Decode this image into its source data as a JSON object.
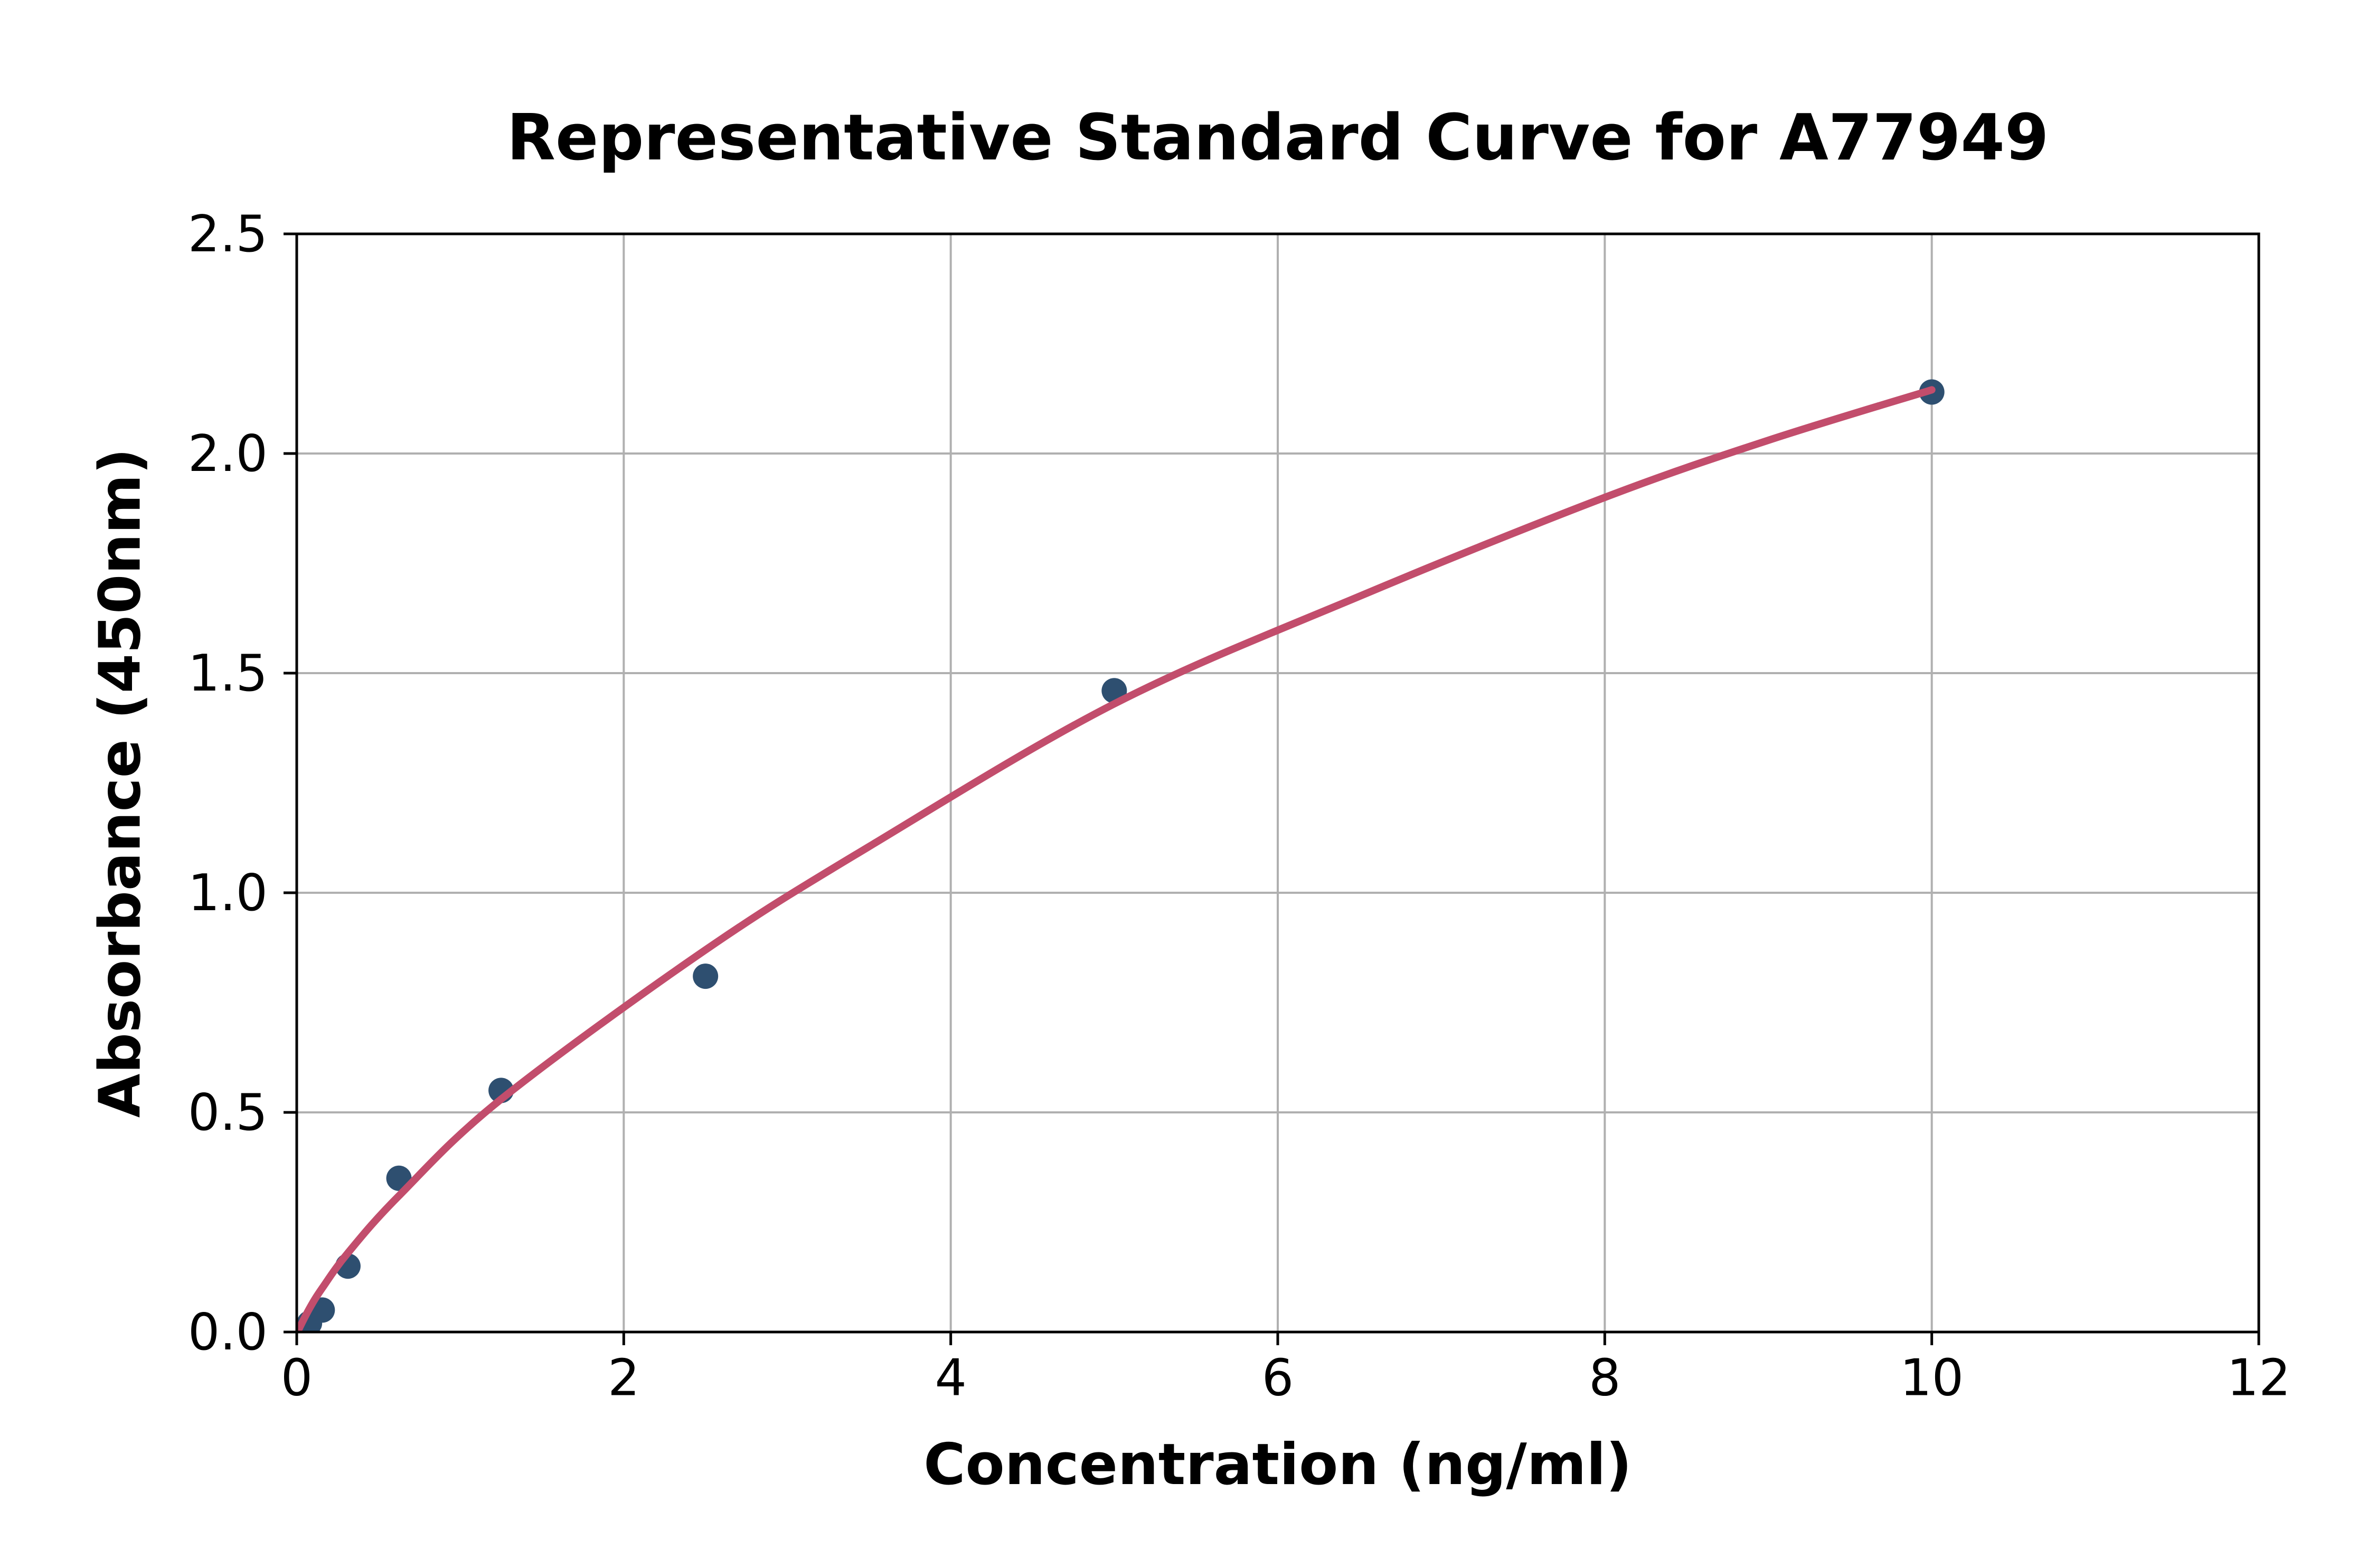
{
  "chart_data": {
    "type": "scatter",
    "title": "Representative Standard Curve for A77949",
    "xlabel": "Concentration (ng/ml)",
    "ylabel": "Absorbance (450nm)",
    "x": [
      0.078,
      0.156,
      0.313,
      0.625,
      1.25,
      2.5,
      5,
      10
    ],
    "y": [
      0.02,
      0.05,
      0.15,
      0.35,
      0.55,
      0.81,
      1.46,
      2.14
    ],
    "fit_curve_points": [
      [
        0.012,
        0.006
      ],
      [
        0.08,
        0.055
      ],
      [
        0.156,
        0.1
      ],
      [
        0.313,
        0.18
      ],
      [
        0.625,
        0.31
      ],
      [
        1.25,
        0.53
      ],
      [
        2.5,
        0.87
      ],
      [
        3.5,
        1.105
      ],
      [
        5.0,
        1.43
      ],
      [
        6.5,
        1.675
      ],
      [
        8.0,
        1.9
      ],
      [
        9.0,
        2.03
      ],
      [
        10.0,
        2.145
      ]
    ],
    "xlim": [
      0,
      12
    ],
    "ylim": [
      0,
      2.5
    ],
    "xticks": [
      0,
      2,
      4,
      6,
      8,
      10,
      12
    ],
    "xtick_labels": [
      "0",
      "2",
      "4",
      "6",
      "8",
      "10",
      "12"
    ],
    "yticks": [
      0,
      0.5,
      1.0,
      1.5,
      2.0,
      2.5
    ],
    "ytick_labels": [
      "0.0",
      "0.5",
      "1.0",
      "1.5",
      "2.0",
      "2.5"
    ],
    "grid": true,
    "legend": "none",
    "colors": {
      "curve_line": "#c24d6c",
      "marker": "#2e4f70",
      "grid_line": "#b0b0b0",
      "spine": "#000000",
      "text": "#000000",
      "background": "#ffffff"
    }
  }
}
